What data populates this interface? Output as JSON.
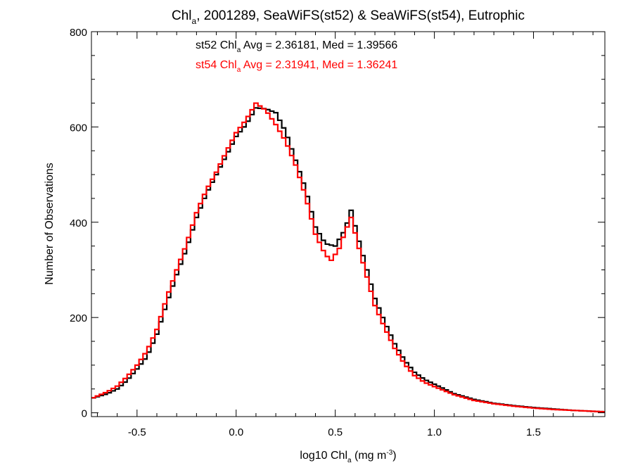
{
  "chart_data": {
    "type": "line",
    "title": {
      "pre": "Chl",
      "sub": "a",
      "post": ", 2001289, SeaWiFS(st52) & SeaWiFS(st54), Eutrophic"
    },
    "xlabel": {
      "pre": "log10 Chl",
      "sub": "a",
      "mid": " (mg m",
      "sup": "-3",
      "post": ")"
    },
    "ylabel": "Number of Observations",
    "xlim": [
      -0.73,
      1.86
    ],
    "ylim": [
      -8,
      800
    ],
    "xticks": [
      {
        "value": -0.5,
        "label": "-0.5"
      },
      {
        "value": 0.0,
        "label": "0.0"
      },
      {
        "value": 0.5,
        "label": "0.5"
      },
      {
        "value": 1.0,
        "label": "1.0"
      },
      {
        "value": 1.5,
        "label": "1.5"
      }
    ],
    "yticks": [
      {
        "value": 0,
        "label": "0"
      },
      {
        "value": 200,
        "label": "200"
      },
      {
        "value": 400,
        "label": "400"
      },
      {
        "value": 600,
        "label": "600"
      },
      {
        "value": 800,
        "label": "800"
      }
    ],
    "grid": false,
    "annotations": [
      {
        "pre": "st52 Chl",
        "sub": "a",
        "post": " Avg = 2.36181, Med = 1.39566",
        "color": "#000000"
      },
      {
        "pre": "st54 Chl",
        "sub": "a",
        "post": " Avg = 2.31941, Med = 1.36241",
        "color": "#ff0000"
      }
    ],
    "series": [
      {
        "color": "#000000",
        "step": 0.02,
        "points": [
          [
            -0.73,
            30
          ],
          [
            -0.69,
            35
          ],
          [
            -0.65,
            40
          ],
          [
            -0.6,
            50
          ],
          [
            -0.55,
            68
          ],
          [
            -0.5,
            92
          ],
          [
            -0.45,
            118
          ],
          [
            -0.4,
            165
          ],
          [
            -0.35,
            230
          ],
          [
            -0.3,
            290
          ],
          [
            -0.25,
            345
          ],
          [
            -0.2,
            410
          ],
          [
            -0.15,
            460
          ],
          [
            -0.1,
            500
          ],
          [
            -0.05,
            540
          ],
          [
            0.0,
            580
          ],
          [
            0.05,
            605
          ],
          [
            0.1,
            640
          ],
          [
            0.15,
            638
          ],
          [
            0.2,
            630
          ],
          [
            0.25,
            590
          ],
          [
            0.3,
            530
          ],
          [
            0.35,
            470
          ],
          [
            0.4,
            390
          ],
          [
            0.45,
            355
          ],
          [
            0.5,
            350
          ],
          [
            0.55,
            385
          ],
          [
            0.58,
            425
          ],
          [
            0.62,
            360
          ],
          [
            0.66,
            300
          ],
          [
            0.7,
            240
          ],
          [
            0.75,
            190
          ],
          [
            0.8,
            145
          ],
          [
            0.85,
            110
          ],
          [
            0.9,
            85
          ],
          [
            0.95,
            70
          ],
          [
            1.0,
            60
          ],
          [
            1.1,
            40
          ],
          [
            1.2,
            28
          ],
          [
            1.3,
            20
          ],
          [
            1.4,
            15
          ],
          [
            1.5,
            11
          ],
          [
            1.6,
            8
          ],
          [
            1.7,
            5
          ],
          [
            1.86,
            2
          ]
        ]
      },
      {
        "color": "#ff0000",
        "step": 0.02,
        "points": [
          [
            -0.73,
            30
          ],
          [
            -0.69,
            37
          ],
          [
            -0.65,
            44
          ],
          [
            -0.6,
            56
          ],
          [
            -0.55,
            76
          ],
          [
            -0.5,
            100
          ],
          [
            -0.45,
            130
          ],
          [
            -0.4,
            175
          ],
          [
            -0.35,
            242
          ],
          [
            -0.3,
            300
          ],
          [
            -0.25,
            355
          ],
          [
            -0.2,
            420
          ],
          [
            -0.15,
            468
          ],
          [
            -0.1,
            505
          ],
          [
            -0.05,
            548
          ],
          [
            0.0,
            588
          ],
          [
            0.05,
            615
          ],
          [
            0.1,
            650
          ],
          [
            0.15,
            635
          ],
          [
            0.2,
            605
          ],
          [
            0.25,
            570
          ],
          [
            0.3,
            520
          ],
          [
            0.35,
            455
          ],
          [
            0.4,
            375
          ],
          [
            0.45,
            332
          ],
          [
            0.48,
            320
          ],
          [
            0.52,
            345
          ],
          [
            0.55,
            380
          ],
          [
            0.58,
            410
          ],
          [
            0.62,
            345
          ],
          [
            0.66,
            285
          ],
          [
            0.7,
            225
          ],
          [
            0.75,
            178
          ],
          [
            0.8,
            135
          ],
          [
            0.85,
            102
          ],
          [
            0.9,
            78
          ],
          [
            0.95,
            64
          ],
          [
            1.0,
            55
          ],
          [
            1.1,
            38
          ],
          [
            1.2,
            26
          ],
          [
            1.3,
            19
          ],
          [
            1.4,
            14
          ],
          [
            1.5,
            10
          ],
          [
            1.6,
            7
          ],
          [
            1.7,
            5
          ],
          [
            1.86,
            2
          ]
        ]
      }
    ]
  }
}
